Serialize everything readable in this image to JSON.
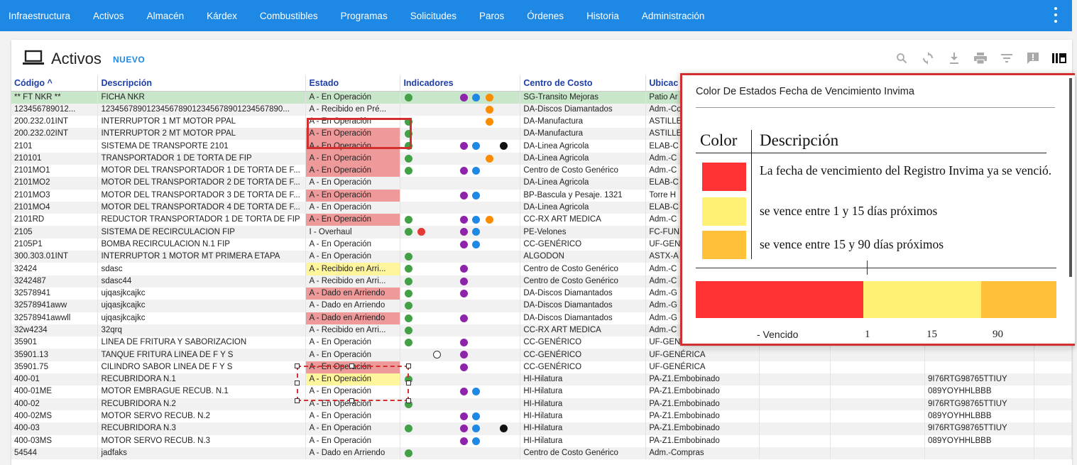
{
  "nav": {
    "items": [
      "Infraestructura",
      "Activos",
      "Almacén",
      "Kárdex",
      "Combustibles",
      "Programas",
      "Solicitudes",
      "Paros",
      "Órdenes",
      "Historia",
      "Administración"
    ]
  },
  "header": {
    "title": "Activos",
    "new_label": "NUEVO"
  },
  "toolbar": {
    "icons": [
      "search-icon",
      "refresh-icon",
      "download-icon",
      "print-icon",
      "filter-icon",
      "report-icon",
      "columns-icon"
    ]
  },
  "table": {
    "columns": [
      "Código ^",
      "Descripción",
      "Estado",
      "Indicadores",
      "Centro de Costo",
      "Ubicac",
      "",
      "",
      "",
      ""
    ],
    "rows": [
      {
        "code": "** FT NKR **",
        "desc": "FICHA NKR",
        "estado": "A - En Operación",
        "st": "",
        "dots": [
          [
            "green",
            2
          ],
          [
            "purple",
            80
          ],
          [
            "blue",
            97
          ],
          [
            "orange",
            116
          ]
        ],
        "cc": "SG-Transito Mejoras",
        "ubic": "Patio Ar",
        "extra": "",
        "hl": true
      },
      {
        "code": "123456789012...",
        "desc": "1234567890123456789012345678901234567890...",
        "estado": "A - Recibido en Pré...",
        "st": "",
        "dots": [
          [
            "orange",
            116
          ]
        ],
        "cc": "DA-Discos Diamantados",
        "ubic": "Adm.-Co",
        "extra": ""
      },
      {
        "code": "200.232.01INT",
        "desc": "INTERRUPTOR 1 MT MOTOR PPAL",
        "estado": "A - En Operación",
        "st": "",
        "dots": [
          [
            "green",
            2
          ],
          [
            "orange",
            116
          ]
        ],
        "cc": "DA-Manufactura",
        "ubic": "ASTILLE",
        "extra": ""
      },
      {
        "code": "200.232.02INT",
        "desc": "INTERRUPTOR 2 MT MOTOR PPAL",
        "estado": "A - En Operación",
        "st": "red",
        "dots": [
          [
            "green",
            2
          ]
        ],
        "cc": "DA-Manufactura",
        "ubic": "ASTILLE",
        "extra": ""
      },
      {
        "code": "2101",
        "desc": "SISTEMA DE TRANSPORTE 2101",
        "estado": "A - En Operación",
        "st": "red",
        "dots": [
          [
            "green",
            2
          ],
          [
            "purple",
            80
          ],
          [
            "blue",
            97
          ],
          [
            "black",
            136
          ]
        ],
        "cc": "DA-Linea Agricola",
        "ubic": "ELAB-C",
        "extra": ""
      },
      {
        "code": "210101",
        "desc": "TRANSPORTADOR 1 DE TORTA DE FIP",
        "estado": "A - En Operación",
        "st": "red",
        "dots": [
          [
            "green",
            2
          ],
          [
            "orange",
            116
          ]
        ],
        "cc": "DA-Linea Agricola",
        "ubic": "Adm.-C",
        "extra": ""
      },
      {
        "code": "2101MO1",
        "desc": "MOTOR DEL TRANSPORTADOR 1 DE TORTA DE F...",
        "estado": "A - En Operación",
        "st": "red",
        "dots": [
          [
            "green",
            2
          ],
          [
            "purple",
            80
          ],
          [
            "blue",
            97
          ]
        ],
        "cc": "Centro de Costo Genérico",
        "ubic": "Adm.-C",
        "extra": ""
      },
      {
        "code": "2101MO2",
        "desc": "MOTOR DEL TRANSPORTADOR 2 DE TORTA DE F...",
        "estado": "A - En Operación",
        "st": "",
        "dots": [],
        "cc": "DA-Linea Agricola",
        "ubic": "ELAB-C",
        "extra": ""
      },
      {
        "code": "2101MO3",
        "desc": "MOTOR DEL TRANSPORTADOR 3 DE TORTA DE F...",
        "estado": "A - En Operación",
        "st": "red",
        "dots": [
          [
            "purple",
            80
          ],
          [
            "blue",
            97
          ]
        ],
        "cc": "BP-Bascula y Pesaje. 1321",
        "ubic": "Torre H",
        "extra": ""
      },
      {
        "code": "2101MO4",
        "desc": "MOTOR DEL TRANSPORTADOR 4 DE TORTA DE F...",
        "estado": "A - En Operación",
        "st": "",
        "dots": [],
        "cc": "DA-Linea Agricola",
        "ubic": "ELAB-C",
        "extra": ""
      },
      {
        "code": "2101RD",
        "desc": "REDUCTOR TRANSPORTADOR 1 DE TORTA DE FIP",
        "estado": "A - En Operación",
        "st": "red",
        "dots": [
          [
            "green",
            2
          ],
          [
            "purple",
            80
          ],
          [
            "blue",
            97
          ],
          [
            "orange",
            116
          ]
        ],
        "cc": "CC-RX ART MEDICA",
        "ubic": "Adm.-C",
        "extra": ""
      },
      {
        "code": "2105",
        "desc": "SISTEMA DE RECIRCULACION FIP",
        "estado": "I - Overhaul",
        "st": "",
        "dots": [
          [
            "green",
            2
          ],
          [
            "red",
            20
          ],
          [
            "purple",
            80
          ],
          [
            "blue",
            97
          ]
        ],
        "cc": "PE-Velones",
        "ubic": "FC-FUN",
        "extra": ""
      },
      {
        "code": "2105P1",
        "desc": "BOMBA RECIRCULACION N.1 FIP",
        "estado": "A - En Operación",
        "st": "",
        "dots": [
          [
            "purple",
            80
          ],
          [
            "blue",
            97
          ]
        ],
        "cc": "CC-GENÉRICO",
        "ubic": "UF-GEN",
        "extra": ""
      },
      {
        "code": "300.303.01INT",
        "desc": "INTERRUPTOR 1 MOTOR MT PRIMERA ETAPA",
        "estado": "A - En Operación",
        "st": "",
        "dots": [
          [
            "green",
            2
          ]
        ],
        "cc": "ALGODON",
        "ubic": "ASTX-A",
        "extra": ""
      },
      {
        "code": "32424",
        "desc": "sdasc",
        "estado": "A - Recibido en Arri...",
        "st": "yel",
        "dots": [
          [
            "green",
            2
          ],
          [
            "purple",
            80
          ]
        ],
        "cc": "Centro de Costo Genérico",
        "ubic": "Adm.-C",
        "extra": ""
      },
      {
        "code": "3242487",
        "desc": "sdasc44",
        "estado": "A - Recibido en Arri...",
        "st": "",
        "dots": [
          [
            "green",
            2
          ],
          [
            "purple",
            80
          ]
        ],
        "cc": "Centro de Costo Genérico",
        "ubic": "Adm.-C",
        "extra": ""
      },
      {
        "code": "32578941",
        "desc": "ujqasjkcajkc",
        "estado": "A - Dado en Arriendo",
        "st": "red",
        "dots": [
          [
            "green",
            2
          ],
          [
            "purple",
            80
          ]
        ],
        "cc": "DA-Discos Diamantados",
        "ubic": "Adm.-G",
        "extra": ""
      },
      {
        "code": "32578941aww",
        "desc": "ujqasjkcajkc",
        "estado": "A - Dado en Arriendo",
        "st": "",
        "dots": [
          [
            "green",
            2
          ]
        ],
        "cc": "DA-Discos Diamantados",
        "ubic": "Adm.-G",
        "extra": ""
      },
      {
        "code": "32578941awwll",
        "desc": "ujqasjkcajkc",
        "estado": "A - Dado en Arriendo",
        "st": "red",
        "dots": [
          [
            "green",
            2
          ],
          [
            "purple",
            80
          ]
        ],
        "cc": "DA-Discos Diamantados",
        "ubic": "Adm.-G",
        "extra": ""
      },
      {
        "code": "32w4234",
        "desc": "32qrq",
        "estado": "A - Recibido en Arri...",
        "st": "",
        "dots": [
          [
            "green",
            2
          ]
        ],
        "cc": "CC-RX ART MEDICA",
        "ubic": "Adm.-C",
        "extra": ""
      },
      {
        "code": "35901",
        "desc": "LINEA DE FRITURA Y SABORIZACION",
        "estado": "A - En Operación",
        "st": "",
        "dots": [
          [
            "green",
            2
          ],
          [
            "purple",
            80
          ]
        ],
        "cc": "CC-GENÉRICO",
        "ubic": "UF-GEN",
        "extra": ""
      },
      {
        "code": "35901.13",
        "desc": "TANQUE FRITURA LINEA DE F Y S",
        "estado": "A - En Operación",
        "st": "",
        "dots": [
          [
            "white",
            42
          ],
          [
            "purple",
            80
          ]
        ],
        "cc": "CC-GENÉRICO",
        "ubic": "UF-GENÉRICA",
        "extra": ""
      },
      {
        "code": "35901.75",
        "desc": "CILINDRO SABOR LINEA DE F Y S",
        "estado": "A - En Operación",
        "st": "red",
        "dots": [
          [
            "purple",
            80
          ]
        ],
        "cc": "CC-GENÉRICO",
        "ubic": "UF-GENÉRICA",
        "extra": ""
      },
      {
        "code": "400-01",
        "desc": "RECUBRIDORA N.1",
        "estado": "A - En Operación",
        "st": "yel",
        "dots": [
          [
            "green",
            2
          ]
        ],
        "cc": "HI-Hilatura",
        "ubic": "PA-Z1.Embobinado",
        "extra": "9I76RTG98765TTIUY"
      },
      {
        "code": "400-01ME",
        "desc": "MOTOR EMBRAGUE RECUB. N.1",
        "estado": "A - En Operación",
        "st": "",
        "dots": [
          [
            "purple",
            80
          ],
          [
            "blue",
            97
          ]
        ],
        "cc": "HI-Hilatura",
        "ubic": "PA-Z1.Embobinado",
        "extra": "089YOYHHLBBB"
      },
      {
        "code": "400-02",
        "desc": "RECUBRIDORA N.2",
        "estado": "A - En Operación",
        "st": "",
        "dots": [
          [
            "green",
            2
          ]
        ],
        "cc": "HI-Hilatura",
        "ubic": "PA-Z1.Embobinado",
        "extra": "9I76RTG98765TTIUY"
      },
      {
        "code": "400-02MS",
        "desc": "MOTOR SERVO RECUB. N.2",
        "estado": "A - En Operación",
        "st": "",
        "dots": [
          [
            "purple",
            80
          ],
          [
            "blue",
            97
          ]
        ],
        "cc": "HI-Hilatura",
        "ubic": "PA-Z1.Embobinado",
        "extra": "089YOYHHLBBB"
      },
      {
        "code": "400-03",
        "desc": "RECUBRIDORA N.3",
        "estado": "A - En Operación",
        "st": "",
        "dots": [
          [
            "green",
            2
          ],
          [
            "purple",
            80
          ],
          [
            "blue",
            97
          ],
          [
            "black",
            136
          ]
        ],
        "cc": "HI-Hilatura",
        "ubic": "PA-Z1.Embobinado",
        "extra": "9I76RTG98765TTIUY"
      },
      {
        "code": "400-03MS",
        "desc": "MOTOR SERVO RECUB. N.3",
        "estado": "A - En Operación",
        "st": "",
        "dots": [
          [
            "purple",
            80
          ],
          [
            "blue",
            97
          ]
        ],
        "cc": "HI-Hilatura",
        "ubic": "PA-Z1.Embobinado",
        "extra": "089YOYHHLBBB"
      },
      {
        "code": "54544",
        "desc": "jadfaks",
        "estado": "A - Dado en Arriendo",
        "st": "",
        "dots": [
          [
            "green",
            2
          ]
        ],
        "cc": "Centro de Costo Genérico",
        "ubic": "Adm.-Compras",
        "extra": ""
      }
    ]
  },
  "legend": {
    "title": "Color De Estados Fecha de Vencimiento Invima",
    "col_color": "Color",
    "col_desc": "Descripción",
    "items": [
      {
        "color": "#ff3333",
        "text": "La fecha de vencimiento del Registro Invima ya se venció."
      },
      {
        "color": "#fff176",
        "text": "se vence entre 1 y 15 días próximos"
      },
      {
        "color": "#ffc03a",
        "text": "se vence entre 15 y 90 días próximos"
      }
    ],
    "scale": {
      "label_expired": "- Vencido",
      "label_1": "1",
      "label_15": "15",
      "label_90": "90"
    }
  },
  "colors": {
    "nav_bg": "#1e88e5",
    "header_text": "#1e3ea8",
    "status_red": "#ef9a9a",
    "status_yellow": "#fff59d",
    "highlight_green": "#c8e6c9"
  }
}
